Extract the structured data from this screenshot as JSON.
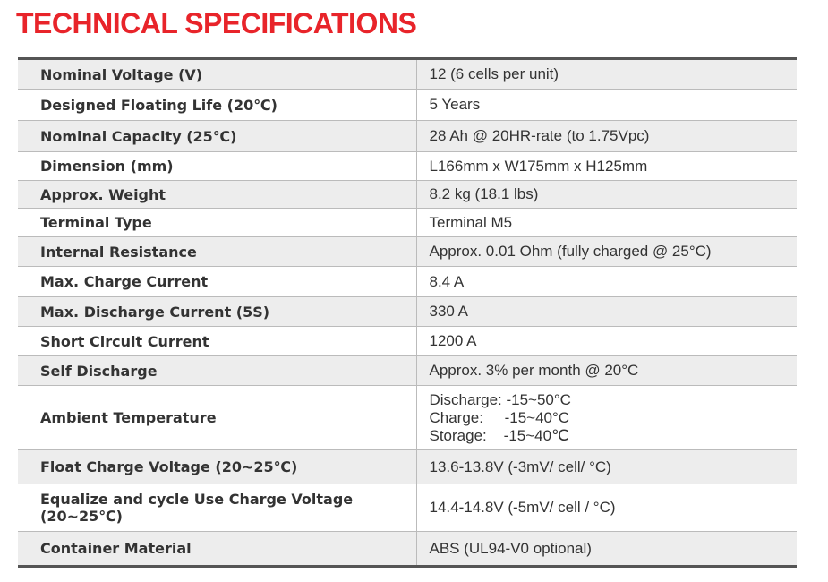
{
  "header": {
    "title": "TECHNICAL SPECIFICATIONS"
  },
  "table": {
    "rows": [
      [
        "Nominal Voltage (V)",
        "12 (6 cells per unit)"
      ],
      [
        "Designed Floating Life (20℃)",
        "5 Years"
      ],
      [
        "Nominal Capacity (25℃)",
        "28 Ah @ 20HR-rate (to 1.75Vpc)"
      ],
      [
        "Dimension (mm)",
        "L166mm x W175mm x H125mm"
      ],
      [
        "Approx. Weight",
        "8.2 kg (18.1 lbs)"
      ],
      [
        "Terminal Type",
        "Terminal M5"
      ],
      [
        "Internal Resistance",
        "Approx. 0.01 Ohm (fully charged @ 25°C)"
      ],
      [
        "Max. Charge Current",
        "8.4 A"
      ],
      [
        "Max. Discharge Current (5S)",
        "330 A"
      ],
      [
        "Short Circuit Current",
        "1200 A"
      ],
      [
        "Self Discharge",
        "Approx. 3% per month @ 20°C"
      ],
      [
        "Ambient Temperature",
        [
          "Discharge: -15~50°C",
          "Charge:     -15~40°C",
          "Storage:    -15~40℃"
        ]
      ],
      [
        "Float Charge Voltage (20~25℃)",
        "13.6-13.8V (-3mV/ cell/ °C)"
      ],
      [
        "Equalize and cycle Use Charge Voltage (20~25℃)",
        "14.4-14.8V (-5mV/ cell / °C)"
      ],
      [
        "Container Material",
        "ABS (UL94-V0 optional)"
      ]
    ]
  }
}
